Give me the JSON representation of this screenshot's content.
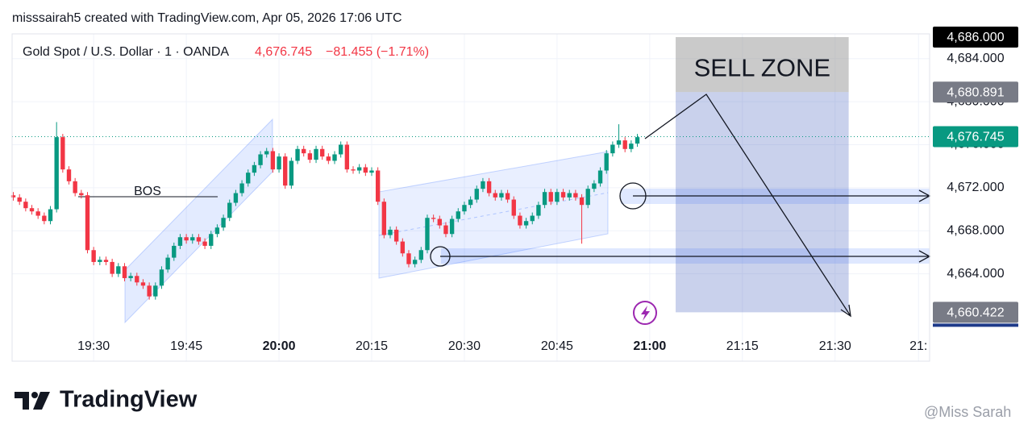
{
  "header": {
    "credit": "misssairah5 created with TradingView.com, Apr 05, 2026 17:06 UTC",
    "symbol": "Gold Spot / U.S. Dollar · 1 · OANDA",
    "price": "4,676.745",
    "change": "−81.455 (−1.71%)"
  },
  "footer": {
    "brand": "TradingView",
    "watermark": "@Miss Sarah"
  },
  "chart_data": {
    "type": "candlestick",
    "x": [
      1157,
      1158,
      1159,
      1160,
      1161,
      1162,
      1163,
      1164,
      1165,
      1166,
      1167,
      1168,
      1169,
      1170,
      1171,
      1172,
      1173,
      1174,
      1175,
      1176,
      1177,
      1178,
      1179,
      1180,
      1181,
      1182,
      1183,
      1184,
      1185,
      1186,
      1187,
      1188,
      1189,
      1190,
      1191,
      1192,
      1193,
      1194,
      1195,
      1196,
      1197,
      1198,
      1199,
      1200,
      1201,
      1202,
      1203,
      1204,
      1205,
      1206,
      1207,
      1208,
      1209,
      1210,
      1211,
      1212,
      1213,
      1214,
      1215,
      1216,
      1217,
      1218,
      1219,
      1220,
      1221,
      1222,
      1223,
      1224,
      1225,
      1226,
      1227,
      1228,
      1229,
      1230,
      1231,
      1232,
      1233,
      1234,
      1235,
      1236,
      1237,
      1238,
      1239,
      1240,
      1241,
      1242,
      1243,
      1244,
      1245,
      1246,
      1247,
      1248,
      1249,
      1250,
      1251,
      1252,
      1253,
      1254,
      1255,
      1256,
      1257,
      1258
    ],
    "open": [
      4671.3,
      4671.1,
      4670.7,
      4670.1,
      4669.8,
      4669.4,
      4668.9,
      4670.0,
      4676.7,
      4673.7,
      4672.6,
      4671.5,
      4671.3,
      4666.2,
      4665.1,
      4665.3,
      4665.1,
      4664.0,
      4664.7,
      4663.6,
      4663.8,
      4663.2,
      4662.9,
      4661.9,
      4662.9,
      4664.4,
      4665.5,
      4666.6,
      4667.4,
      4667.1,
      4667.4,
      4667.0,
      4666.6,
      4667.7,
      4668.3,
      4669.2,
      4670.6,
      4671.5,
      4672.4,
      4673.4,
      4674.1,
      4675.1,
      4675.4,
      4673.7,
      4674.9,
      4672.2,
      4674.5,
      4675.6,
      4675.2,
      4674.6,
      4675.6,
      4674.9,
      4674.5,
      4675.1,
      4676.0,
      4673.7,
      4673.6,
      4673.9,
      4673.4,
      4673.6,
      4670.7,
      4667.6,
      4668.1,
      4667.0,
      4665.9,
      4664.9,
      4665.3,
      4666.2,
      4669.2,
      4669.1,
      4668.5,
      4667.7,
      4669.1,
      4669.8,
      4670.4,
      4670.9,
      4671.9,
      4672.6,
      4671.5,
      4671.1,
      4671.5,
      4670.9,
      4669.4,
      4668.5,
      4668.9,
      4669.4,
      4670.4,
      4671.6,
      4670.7,
      4671.6,
      4671.1,
      4671.5,
      4671.1,
      4670.4,
      4671.9,
      4672.4,
      4673.6,
      4675.2,
      4676.0,
      4676.4,
      4675.6,
      4676.1
    ],
    "high": [
      4671.6,
      4671.4,
      4671.0,
      4670.4,
      4670.1,
      4669.7,
      4670.3,
      4678.1,
      4677.0,
      4674.0,
      4672.9,
      4671.8,
      4671.6,
      4666.5,
      4665.6,
      4665.6,
      4665.4,
      4665.0,
      4665.0,
      4664.1,
      4664.1,
      4663.5,
      4663.2,
      4663.2,
      4664.7,
      4665.8,
      4666.9,
      4667.7,
      4667.7,
      4667.7,
      4667.7,
      4667.3,
      4668.0,
      4668.6,
      4669.5,
      4670.9,
      4671.8,
      4672.7,
      4673.7,
      4674.4,
      4675.4,
      4675.7,
      4675.7,
      4675.2,
      4675.2,
      4674.8,
      4675.9,
      4675.9,
      4675.5,
      4675.9,
      4675.9,
      4675.2,
      4675.4,
      4676.3,
      4676.3,
      4674.0,
      4674.2,
      4674.2,
      4673.9,
      4673.9,
      4671.0,
      4668.4,
      4668.4,
      4667.3,
      4666.2,
      4665.6,
      4666.5,
      4669.5,
      4669.5,
      4669.4,
      4668.8,
      4669.4,
      4670.1,
      4670.7,
      4671.2,
      4672.2,
      4672.9,
      4672.9,
      4671.8,
      4671.8,
      4671.8,
      4671.2,
      4669.7,
      4669.2,
      4669.7,
      4670.7,
      4671.9,
      4671.9,
      4671.9,
      4671.9,
      4671.8,
      4671.8,
      4671.4,
      4672.2,
      4672.7,
      4673.9,
      4675.5,
      4676.3,
      4677.9,
      4676.7,
      4676.4,
      4677.0
    ],
    "low": [
      4670.8,
      4670.4,
      4669.8,
      4669.5,
      4669.1,
      4668.6,
      4668.6,
      4669.7,
      4673.4,
      4672.3,
      4671.2,
      4671.0,
      4665.9,
      4664.8,
      4664.8,
      4664.8,
      4663.7,
      4663.7,
      4663.3,
      4663.3,
      4662.9,
      4662.6,
      4661.6,
      4661.6,
      4662.6,
      4664.1,
      4665.2,
      4666.3,
      4666.8,
      4666.8,
      4666.7,
      4666.3,
      4666.3,
      4667.4,
      4668.0,
      4668.9,
      4670.3,
      4671.2,
      4672.1,
      4673.1,
      4673.8,
      4674.8,
      4673.4,
      4673.4,
      4671.9,
      4671.9,
      4674.2,
      4674.9,
      4674.3,
      4674.3,
      4674.6,
      4674.2,
      4674.2,
      4674.8,
      4673.4,
      4673.3,
      4673.3,
      4673.1,
      4673.1,
      4670.4,
      4667.3,
      4667.3,
      4666.7,
      4665.6,
      4664.6,
      4664.6,
      4665.0,
      4665.9,
      4668.8,
      4668.2,
      4667.4,
      4667.4,
      4668.8,
      4669.5,
      4670.1,
      4670.6,
      4671.6,
      4671.2,
      4670.8,
      4670.8,
      4670.6,
      4669.1,
      4668.2,
      4668.2,
      4668.6,
      4669.1,
      4670.1,
      4670.4,
      4670.4,
      4670.8,
      4670.8,
      4670.8,
      4666.8,
      4670.1,
      4671.6,
      4672.1,
      4673.3,
      4674.9,
      4675.7,
      4675.3,
      4675.3,
      4675.8
    ],
    "close": [
      4671.1,
      4670.7,
      4670.1,
      4669.8,
      4669.4,
      4668.9,
      4670.0,
      4676.7,
      4673.7,
      4672.6,
      4671.5,
      4671.3,
      4666.2,
      4665.1,
      4665.3,
      4665.1,
      4664.0,
      4664.7,
      4663.6,
      4663.8,
      4663.2,
      4662.9,
      4661.9,
      4662.9,
      4664.4,
      4665.5,
      4666.6,
      4667.4,
      4667.1,
      4667.4,
      4667.0,
      4666.6,
      4667.7,
      4668.3,
      4669.2,
      4670.6,
      4671.5,
      4672.4,
      4673.4,
      4674.1,
      4675.1,
      4675.4,
      4673.7,
      4674.9,
      4672.2,
      4674.5,
      4675.6,
      4675.2,
      4674.6,
      4675.6,
      4674.9,
      4674.5,
      4675.1,
      4676.0,
      4673.7,
      4673.6,
      4673.9,
      4673.4,
      4673.6,
      4670.7,
      4667.6,
      4668.1,
      4667.0,
      4665.9,
      4664.9,
      4665.3,
      4666.2,
      4669.2,
      4669.1,
      4668.5,
      4667.7,
      4669.1,
      4669.8,
      4670.4,
      4670.9,
      4671.9,
      4672.6,
      4671.5,
      4671.1,
      4671.5,
      4670.9,
      4669.4,
      4668.5,
      4668.9,
      4669.4,
      4670.4,
      4671.6,
      4670.7,
      4671.6,
      4671.1,
      4671.5,
      4671.1,
      4670.4,
      4671.9,
      4672.4,
      4673.6,
      4675.2,
      4676.0,
      4676.4,
      4675.6,
      4676.1,
      4676.7
    ],
    "up_color": "#089981",
    "down_color": "#f23645",
    "xlim": [
      1156.8,
      1305.3
    ],
    "ylim": [
      4659.85,
      4686.3
    ],
    "grid": true,
    "xticks": [
      {
        "value": 1170,
        "label": "19:30"
      },
      {
        "value": 1185,
        "label": "19:45"
      },
      {
        "value": 1200,
        "label": "20:00",
        "bold": true
      },
      {
        "value": 1215,
        "label": "20:15"
      },
      {
        "value": 1230,
        "label": "20:30"
      },
      {
        "value": 1245,
        "label": "20:45"
      },
      {
        "value": 1260,
        "label": "21:00",
        "bold": true
      },
      {
        "value": 1275,
        "label": "21:15"
      },
      {
        "value": 1290,
        "label": "21:30"
      },
      {
        "value": 1303.5,
        "label": "21:"
      }
    ],
    "yticks": [
      {
        "value": 4664,
        "label": "4,664.000"
      },
      {
        "value": 4668,
        "label": "4,668.000"
      },
      {
        "value": 4672,
        "label": "4,672.000"
      },
      {
        "value": 4676,
        "label": "4,676.000"
      },
      {
        "value": 4680,
        "label": "4,680.000"
      },
      {
        "value": 4684,
        "label": "4,684.000"
      }
    ],
    "price_labels": [
      {
        "value": 4686,
        "label": "4,686.000",
        "color": "#000000"
      },
      {
        "value": 4680.891,
        "label": "4,680.891",
        "color": "#787b86"
      },
      {
        "value": 4676.745,
        "label": "4,676.745",
        "color": "#089981"
      },
      {
        "value": 4660.422,
        "label": "4,660.422",
        "color": "#787b86"
      }
    ],
    "annotations": {
      "bos": "BOS",
      "sell_zone": "SELL ZONE"
    },
    "zone_x": [
      1264.2,
      1292.2
    ]
  }
}
